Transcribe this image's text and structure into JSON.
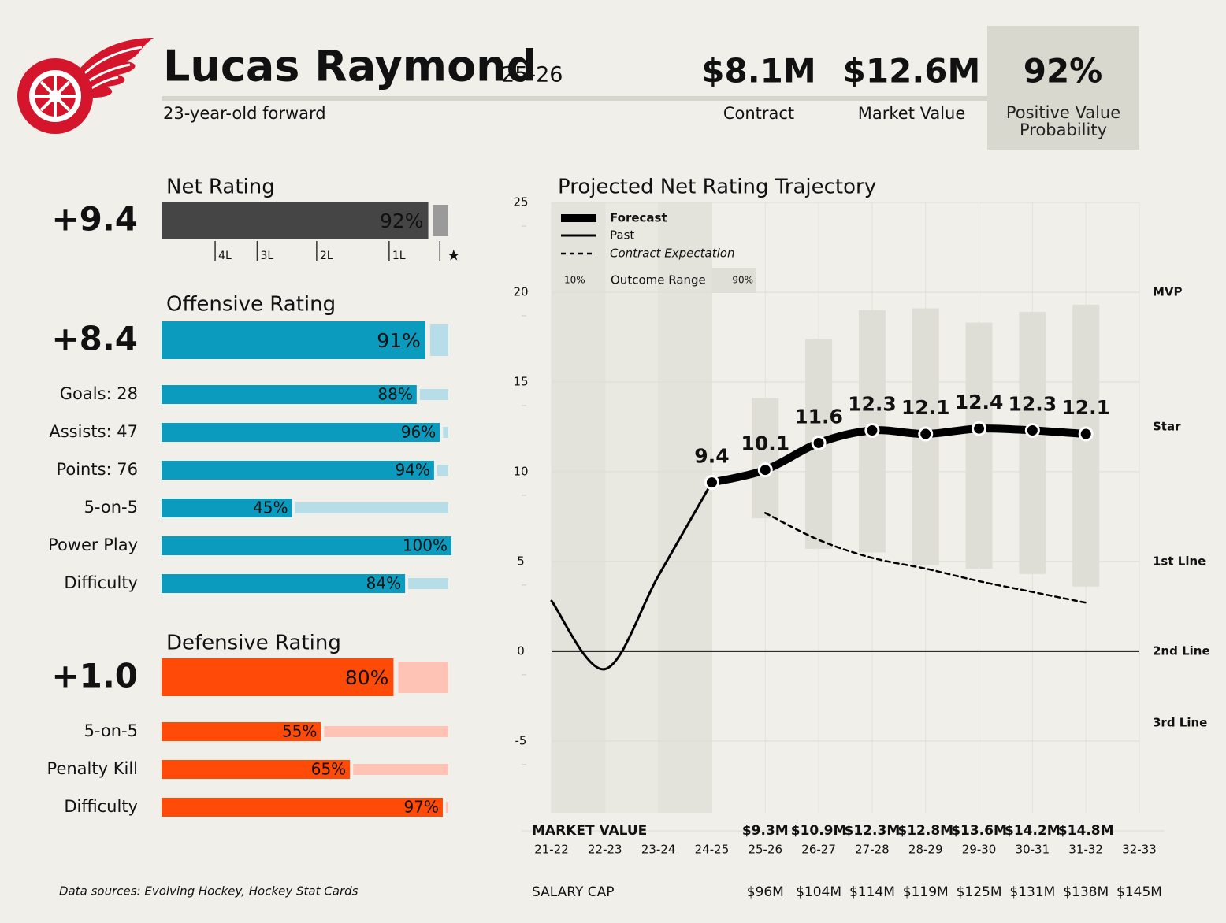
{
  "header": {
    "title": "Lucas Raymond",
    "season": "25-26",
    "subtitle": "23-year-old forward",
    "stats": [
      {
        "value": "$8.1M",
        "label": "Contract"
      },
      {
        "value": "$12.6M",
        "label": "Market Value"
      },
      {
        "value": "92%",
        "label": "Positive Value Probability"
      }
    ]
  },
  "ratings": {
    "xlim": [
      0,
      100
    ],
    "groups": [
      {
        "title": "Net Rating",
        "rating": "+9.4",
        "value": 92,
        "value_label": "92%",
        "color": "#454545",
        "light_color": "#9a9a9a",
        "ticks": [
          {
            "value": 18.5,
            "label": "4L"
          },
          {
            "value": 33,
            "label": "3L"
          },
          {
            "value": 53.5,
            "label": "2L"
          },
          {
            "value": 78.5,
            "label": "1L"
          },
          {
            "value": 96,
            "label": "★"
          }
        ]
      },
      {
        "title": "Offensive Rating",
        "rating": "+8.4",
        "value": 91,
        "value_label": "91%",
        "color": "#0a9bbf",
        "light_color": "#b7dde9",
        "categories": [
          "Goals: 28",
          "Assists: 47",
          "Points: 76",
          "5-on-5",
          "Power Play",
          "Difficulty"
        ],
        "values": [
          88,
          96,
          94,
          45,
          100,
          84
        ],
        "value_labels": [
          "88%",
          "96%",
          "94%",
          "45%",
          "100%",
          "84%"
        ]
      },
      {
        "title": "Defensive Rating",
        "rating": "+1.0",
        "value": 80,
        "value_label": "80%",
        "color": "#ff4a08",
        "light_color": "#ffc3b5",
        "categories": [
          "5-on-5",
          "Penalty Kill",
          "Difficulty"
        ],
        "values": [
          55,
          65,
          97
        ],
        "value_labels": [
          "55%",
          "65%",
          "97%"
        ]
      }
    ]
  },
  "chart_data": {
    "type": "line",
    "title": "Projected Net Rating Trajectory",
    "categories": [
      "21-22",
      "22-23",
      "23-24",
      "24-25",
      "25-26",
      "26-27",
      "27-28",
      "28-29",
      "29-30",
      "30-31",
      "31-32",
      "32-33"
    ],
    "ylim": [
      -9,
      25
    ],
    "yticks": [
      -5,
      0,
      5,
      10,
      15,
      20,
      25
    ],
    "y2lim": [
      -9,
      25
    ],
    "y2ticks": [
      {
        "value": 20,
        "label": "MVP"
      },
      {
        "value": 12.5,
        "label": "Star"
      },
      {
        "value": 5,
        "label": "1st Line"
      },
      {
        "value": 0,
        "label": "2nd Line"
      },
      {
        "value": -4,
        "label": "3rd Line"
      }
    ],
    "series": [
      {
        "name": "Forecast",
        "color": "#000000",
        "values": [
          null,
          null,
          null,
          9.4,
          10.1,
          11.6,
          12.3,
          12.1,
          12.4,
          12.3,
          12.1,
          null
        ]
      },
      {
        "name": "Past",
        "color": "#000000",
        "values": [
          2.8,
          -1.0,
          4.2,
          9.4,
          null,
          null,
          null,
          null,
          null,
          null,
          null,
          null
        ]
      },
      {
        "name": "Contract Expectation",
        "color": "#000000",
        "values": [
          null,
          null,
          null,
          null,
          7.7,
          6.2,
          5.2,
          4.6,
          3.9,
          3.3,
          2.7,
          null
        ]
      }
    ],
    "range": {
      "name": "Outcome Range",
      "low_label": "10%",
      "high_label": "90%",
      "color": "#dfded6",
      "low": [
        null,
        null,
        null,
        null,
        7.4,
        5.7,
        5.5,
        4.8,
        4.6,
        4.3,
        3.6,
        null
      ],
      "high": [
        null,
        null,
        null,
        null,
        14.1,
        17.4,
        19.0,
        19.1,
        18.3,
        18.9,
        19.3,
        null
      ]
    },
    "market_value": {
      "label": "MARKET VALUE",
      "values": [
        null,
        null,
        null,
        null,
        "$9.3M",
        "$10.9M",
        "$12.3M",
        "$12.8M",
        "$13.6M",
        "$14.2M",
        "$14.8M",
        null
      ]
    },
    "salary_cap": {
      "label": "SALARY CAP",
      "values": [
        null,
        null,
        null,
        null,
        "$96M",
        "$104M",
        "$114M",
        "$119M",
        "$125M",
        "$131M",
        "$138M",
        "$145M"
      ]
    }
  },
  "footer": {
    "source": "Data sources: Evolving Hockey, Hockey Stat Cards"
  }
}
